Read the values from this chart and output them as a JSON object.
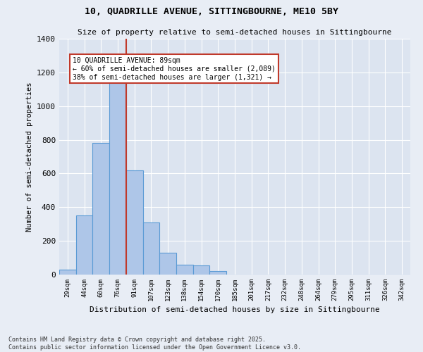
{
  "title1": "10, QUADRILLE AVENUE, SITTINGBOURNE, ME10 5BY",
  "title2": "Size of property relative to semi-detached houses in Sittingbourne",
  "xlabel": "Distribution of semi-detached houses by size in Sittingbourne",
  "ylabel": "Number of semi-detached properties",
  "bar_color": "#aec6e8",
  "bar_edge_color": "#5b9bd5",
  "categories": [
    "29sqm",
    "44sqm",
    "60sqm",
    "76sqm",
    "91sqm",
    "107sqm",
    "123sqm",
    "138sqm",
    "154sqm",
    "170sqm",
    "185sqm",
    "201sqm",
    "217sqm",
    "232sqm",
    "248sqm",
    "264sqm",
    "279sqm",
    "295sqm",
    "311sqm",
    "326sqm",
    "342sqm"
  ],
  "values": [
    30,
    350,
    780,
    1150,
    620,
    310,
    130,
    60,
    55,
    20,
    0,
    0,
    0,
    0,
    0,
    0,
    0,
    0,
    0,
    0,
    0
  ],
  "vline_color": "#c0392b",
  "annotation_text": "10 QUADRILLE AVENUE: 89sqm\n← 60% of semi-detached houses are smaller (2,089)\n38% of semi-detached houses are larger (1,321) →",
  "annotation_box_color": "#ffffff",
  "annotation_box_edge": "#c0392b",
  "ylim": [
    0,
    1400
  ],
  "yticks": [
    0,
    200,
    400,
    600,
    800,
    1000,
    1200,
    1400
  ],
  "footer": "Contains HM Land Registry data © Crown copyright and database right 2025.\nContains public sector information licensed under the Open Government Licence v3.0.",
  "background_color": "#e8edf5",
  "plot_bg_color": "#dce4f0",
  "vline_x": 3.5
}
